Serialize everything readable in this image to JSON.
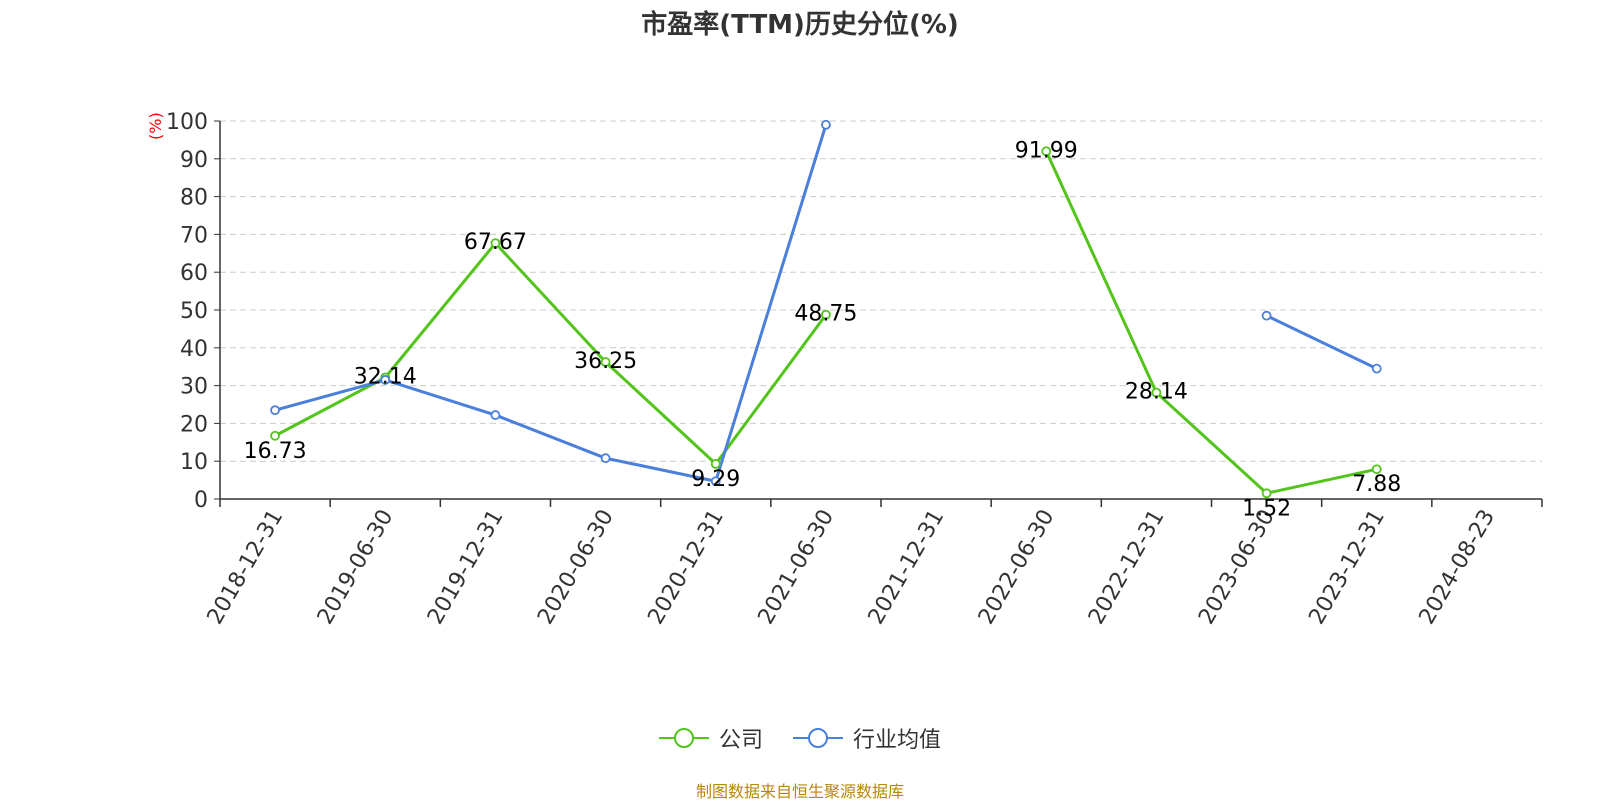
{
  "chart_data": {
    "type": "line",
    "title": "市盈率(TTM)历史分位(%)",
    "ylabel": "(%)",
    "xlabel": "",
    "categories": [
      "2018-12-31",
      "2019-06-30",
      "2019-12-31",
      "2020-06-30",
      "2020-12-31",
      "2021-06-30",
      "2021-12-31",
      "2022-06-30",
      "2022-12-31",
      "2023-06-30",
      "2023-12-31",
      "2024-08-23"
    ],
    "yticks": [
      0,
      10,
      20,
      30,
      40,
      50,
      60,
      70,
      80,
      90,
      100
    ],
    "ylim": [
      0,
      100
    ],
    "grid": true,
    "legend_position": "bottom",
    "series": [
      {
        "name": "公司",
        "color": "#52c41a",
        "values": [
          16.73,
          32.14,
          67.67,
          36.25,
          9.29,
          48.75,
          null,
          91.99,
          28.14,
          1.52,
          7.88,
          null
        ],
        "show_labels": true
      },
      {
        "name": "行业均值",
        "color": "#4a7fdb",
        "values": [
          23.5,
          31.5,
          22.2,
          10.8,
          4.7,
          99.0,
          null,
          null,
          null,
          48.5,
          34.5,
          null
        ],
        "show_labels": false
      }
    ]
  },
  "source": "制图数据来自恒生聚源数据库"
}
